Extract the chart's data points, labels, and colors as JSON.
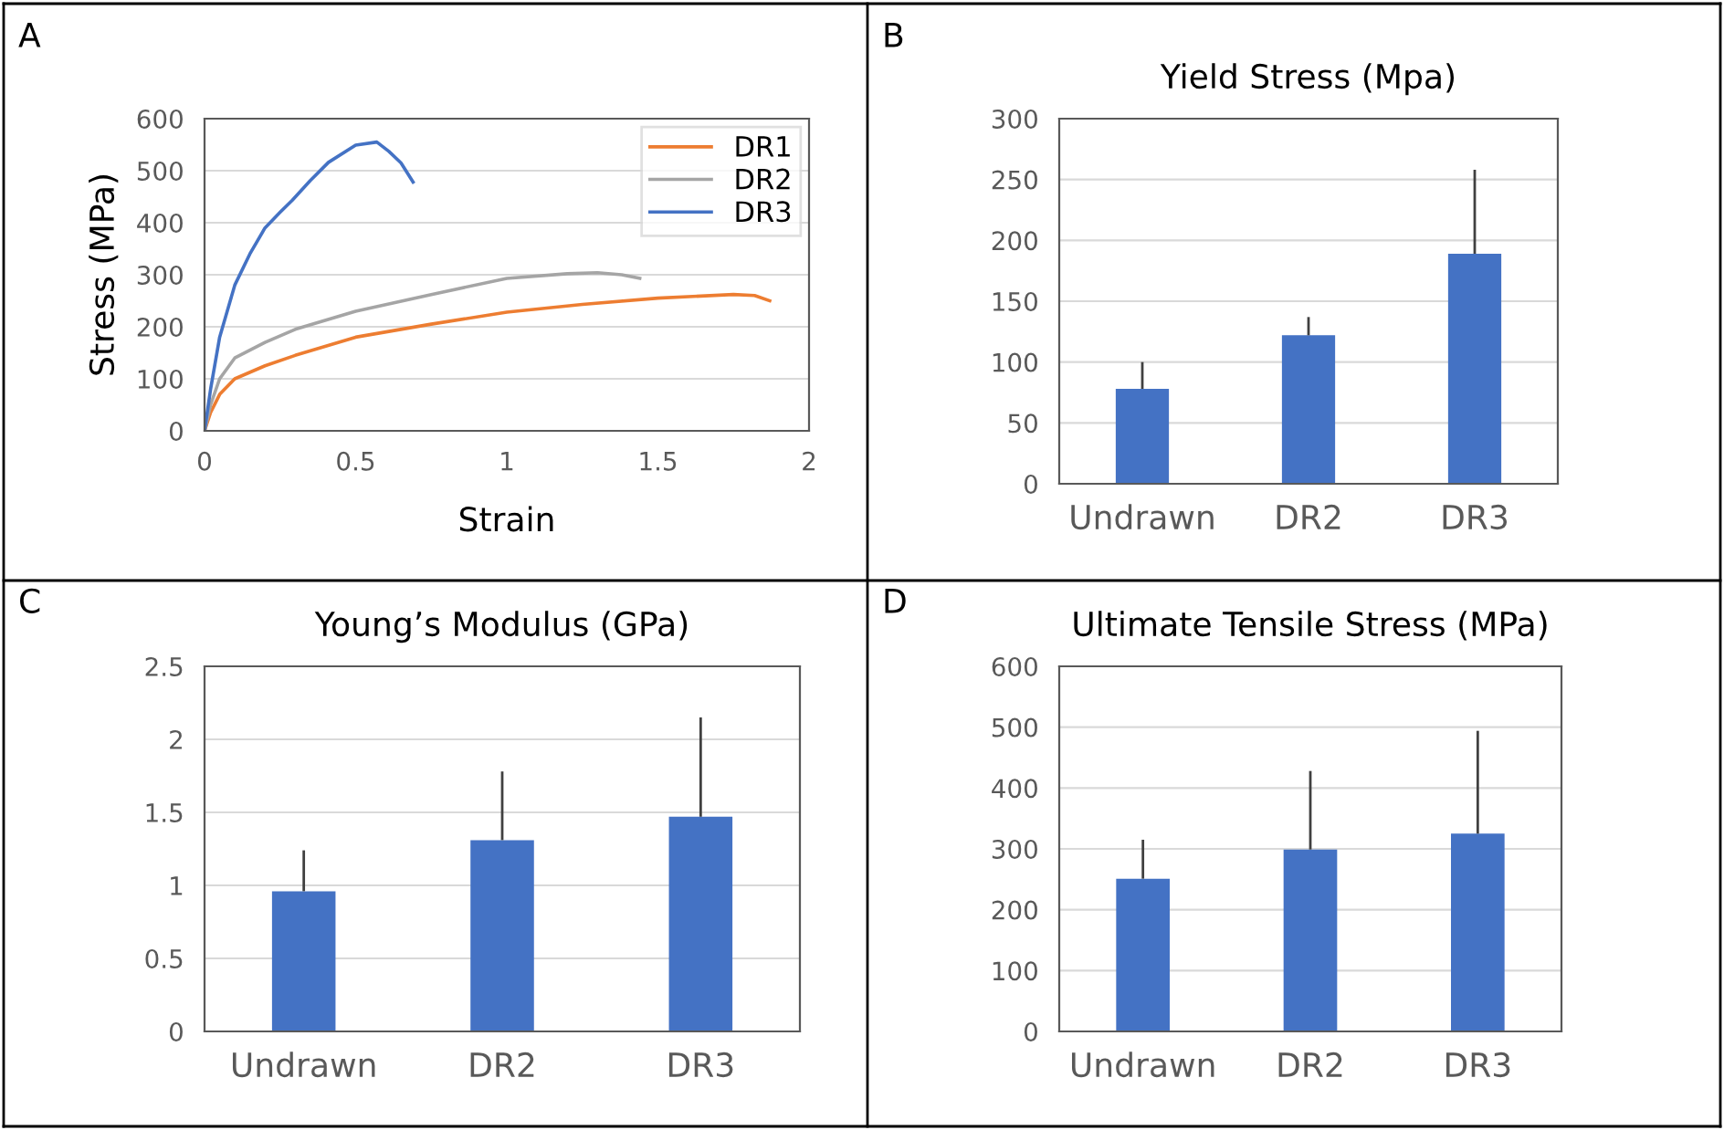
{
  "chart_data": [
    {
      "type": "line",
      "xlabel": "Strain",
      "ylabel": "Stress (MPa)",
      "annotations": [
        "A"
      ],
      "xlim": [
        0,
        2
      ],
      "xticks": [
        0,
        0.5,
        1,
        1.5,
        2
      ],
      "ylim": [
        0,
        600
      ],
      "yticks": [
        0,
        100,
        200,
        300,
        400,
        500,
        600
      ],
      "grid": "y",
      "legend": "top right",
      "marker": "none",
      "line_style": "solid",
      "series": [
        {
          "name": "DR1",
          "color": "#ed7d31",
          "x": [
            0,
            0.02,
            0.05,
            0.1,
            0.2,
            0.3,
            0.5,
            0.75,
            1.0,
            1.25,
            1.5,
            1.75,
            1.82,
            1.87
          ],
          "values": [
            0,
            35,
            70,
            100,
            125,
            145,
            180,
            205,
            228,
            243,
            255,
            262,
            260,
            250
          ]
        },
        {
          "name": "DR2",
          "color": "#a5a5a5",
          "x": [
            0,
            0.02,
            0.05,
            0.1,
            0.2,
            0.3,
            0.5,
            0.75,
            1.0,
            1.2,
            1.3,
            1.38,
            1.44
          ],
          "values": [
            0,
            50,
            100,
            140,
            170,
            195,
            230,
            262,
            293,
            302,
            304,
            300,
            293
          ]
        },
        {
          "name": "DR3",
          "color": "#4472c4",
          "x": [
            0,
            0.02,
            0.05,
            0.1,
            0.15,
            0.2,
            0.25,
            0.29,
            0.35,
            0.41,
            0.5,
            0.57,
            0.61,
            0.65,
            0.69
          ],
          "values": [
            0,
            80,
            180,
            280,
            340,
            390,
            420,
            443,
            481,
            516,
            549,
            555,
            537,
            515,
            478
          ]
        }
      ]
    },
    {
      "type": "bar",
      "title": "Yield Stress (Mpa)",
      "annotations": [
        "B"
      ],
      "categories": [
        "Undrawn",
        "DR2",
        "DR3"
      ],
      "ylim": [
        0,
        300
      ],
      "yticks": [
        0,
        50,
        100,
        150,
        200,
        250,
        300
      ],
      "grid": "y",
      "series": [
        {
          "color": "#4472c4",
          "values": [
            78,
            122,
            189
          ],
          "errors": [
            [
              78,
              100
            ],
            [
              122,
              137
            ],
            [
              189,
              258
            ]
          ]
        }
      ]
    },
    {
      "type": "bar",
      "title": "Young’s Modulus (GPa)",
      "annotations": [
        "C"
      ],
      "categories": [
        "Undrawn",
        "DR2",
        "DR3"
      ],
      "ylim": [
        0,
        2.5
      ],
      "yticks": [
        0,
        0.5,
        1,
        1.5,
        2,
        2.5
      ],
      "grid": "y",
      "series": [
        {
          "color": "#4472c4",
          "values": [
            0.96,
            1.31,
            1.47
          ],
          "errors": [
            [
              0.96,
              1.24
            ],
            [
              1.31,
              1.78
            ],
            [
              1.47,
              2.15
            ]
          ]
        }
      ]
    },
    {
      "type": "bar",
      "title": "Ultimate Tensile Stress (MPa)",
      "annotations": [
        "D"
      ],
      "categories": [
        "Undrawn",
        "DR2",
        "DR3"
      ],
      "ylim": [
        0,
        600
      ],
      "yticks": [
        0,
        100,
        200,
        300,
        400,
        500,
        600
      ],
      "grid": "y",
      "series": [
        {
          "color": "#4472c4",
          "values": [
            251,
            299,
            325
          ],
          "errors": [
            [
              251,
              315
            ],
            [
              299,
              428
            ],
            [
              325,
              494
            ]
          ]
        }
      ]
    }
  ]
}
